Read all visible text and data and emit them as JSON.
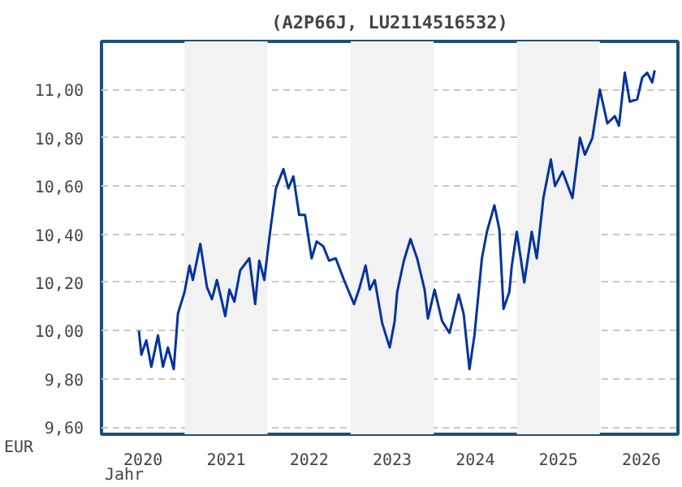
{
  "chart_data": {
    "type": "line",
    "title": "(A2P66J, LU2114516532)",
    "xlabel": "Jahr",
    "ylabel": "EUR",
    "x": [
      2020.45,
      2020.48,
      2020.54,
      2020.6,
      2020.68,
      2020.74,
      2020.8,
      2020.87,
      2020.92,
      2021.0,
      2021.06,
      2021.1,
      2021.19,
      2021.27,
      2021.33,
      2021.39,
      2021.49,
      2021.54,
      2021.6,
      2021.67,
      2021.78,
      2021.85,
      2021.9,
      2021.96,
      2022.03,
      2022.1,
      2022.19,
      2022.25,
      2022.31,
      2022.38,
      2022.45,
      2022.53,
      2022.59,
      2022.67,
      2022.74,
      2022.82,
      2022.92,
      2023.04,
      2023.1,
      2023.18,
      2023.23,
      2023.29,
      2023.38,
      2023.47,
      2023.53,
      2023.56,
      2023.64,
      2023.72,
      2023.8,
      2023.89,
      2023.93,
      2024.01,
      2024.1,
      2024.19,
      2024.3,
      2024.36,
      2024.43,
      2024.49,
      2024.58,
      2024.64,
      2024.73,
      2024.79,
      2024.84,
      2024.91,
      2024.94,
      2025.0,
      2025.09,
      2025.18,
      2025.24,
      2025.32,
      2025.41,
      2025.46,
      2025.55,
      2025.67,
      2025.76,
      2025.82,
      2025.91,
      2026.0,
      2026.09,
      2026.18,
      2026.23,
      2026.3,
      2026.36,
      2026.45,
      2026.51,
      2026.57,
      2026.63,
      2026.66
    ],
    "series": [
      {
        "color": "#0033a0",
        "values": [
          10.0,
          9.9,
          9.96,
          9.85,
          9.98,
          9.85,
          9.93,
          9.84,
          10.07,
          10.16,
          10.27,
          10.21,
          10.36,
          10.18,
          10.13,
          10.21,
          10.06,
          10.17,
          10.12,
          10.25,
          10.3,
          10.11,
          10.29,
          10.21,
          10.41,
          10.59,
          10.67,
          10.59,
          10.64,
          10.48,
          10.48,
          10.3,
          10.37,
          10.35,
          10.29,
          10.3,
          10.21,
          10.11,
          10.17,
          10.27,
          10.17,
          10.21,
          10.03,
          9.93,
          10.04,
          10.16,
          10.29,
          10.38,
          10.3,
          10.17,
          10.05,
          10.17,
          10.04,
          9.99,
          10.15,
          10.07,
          9.84,
          9.98,
          10.3,
          10.41,
          10.52,
          10.42,
          10.09,
          10.16,
          10.27,
          10.41,
          10.2,
          10.41,
          10.3,
          10.55,
          10.71,
          10.6,
          10.66,
          10.55,
          10.8,
          10.73,
          10.8,
          11.0,
          10.86,
          10.89,
          10.85,
          11.07,
          10.95,
          10.96,
          11.05,
          11.07,
          11.03,
          11.08
        ]
      }
    ],
    "xlim": [
      2020,
      2026.94
    ],
    "ylim": [
      9.57,
      11.2
    ],
    "xticks": [
      {
        "value": 2020.5,
        "label": "2020"
      },
      {
        "value": 2021.5,
        "label": "2021"
      },
      {
        "value": 2022.5,
        "label": "2022"
      },
      {
        "value": 2023.5,
        "label": "2023"
      },
      {
        "value": 2024.5,
        "label": "2024"
      },
      {
        "value": 2025.5,
        "label": "2025"
      },
      {
        "value": 2026.5,
        "label": "2026"
      }
    ],
    "yticks": [
      {
        "value": 9.6,
        "label": "9,60"
      },
      {
        "value": 9.8,
        "label": "9,80"
      },
      {
        "value": 10.0,
        "label": "10,00"
      },
      {
        "value": 10.2,
        "label": "10,20"
      },
      {
        "value": 10.4,
        "label": "10,40"
      },
      {
        "value": 10.6,
        "label": "10,60"
      },
      {
        "value": 10.8,
        "label": "10,80"
      },
      {
        "value": 11.0,
        "label": "11,00"
      }
    ],
    "bands": [
      {
        "axis": "x",
        "from": 2021,
        "to": 2022,
        "color": "#f2f2f2"
      },
      {
        "axis": "x",
        "from": 2023,
        "to": 2024,
        "color": "#f2f2f2"
      },
      {
        "axis": "x",
        "from": 2025,
        "to": 2026,
        "color": "#f2f2f2"
      }
    ],
    "grid": "y",
    "line_style": "solid"
  }
}
